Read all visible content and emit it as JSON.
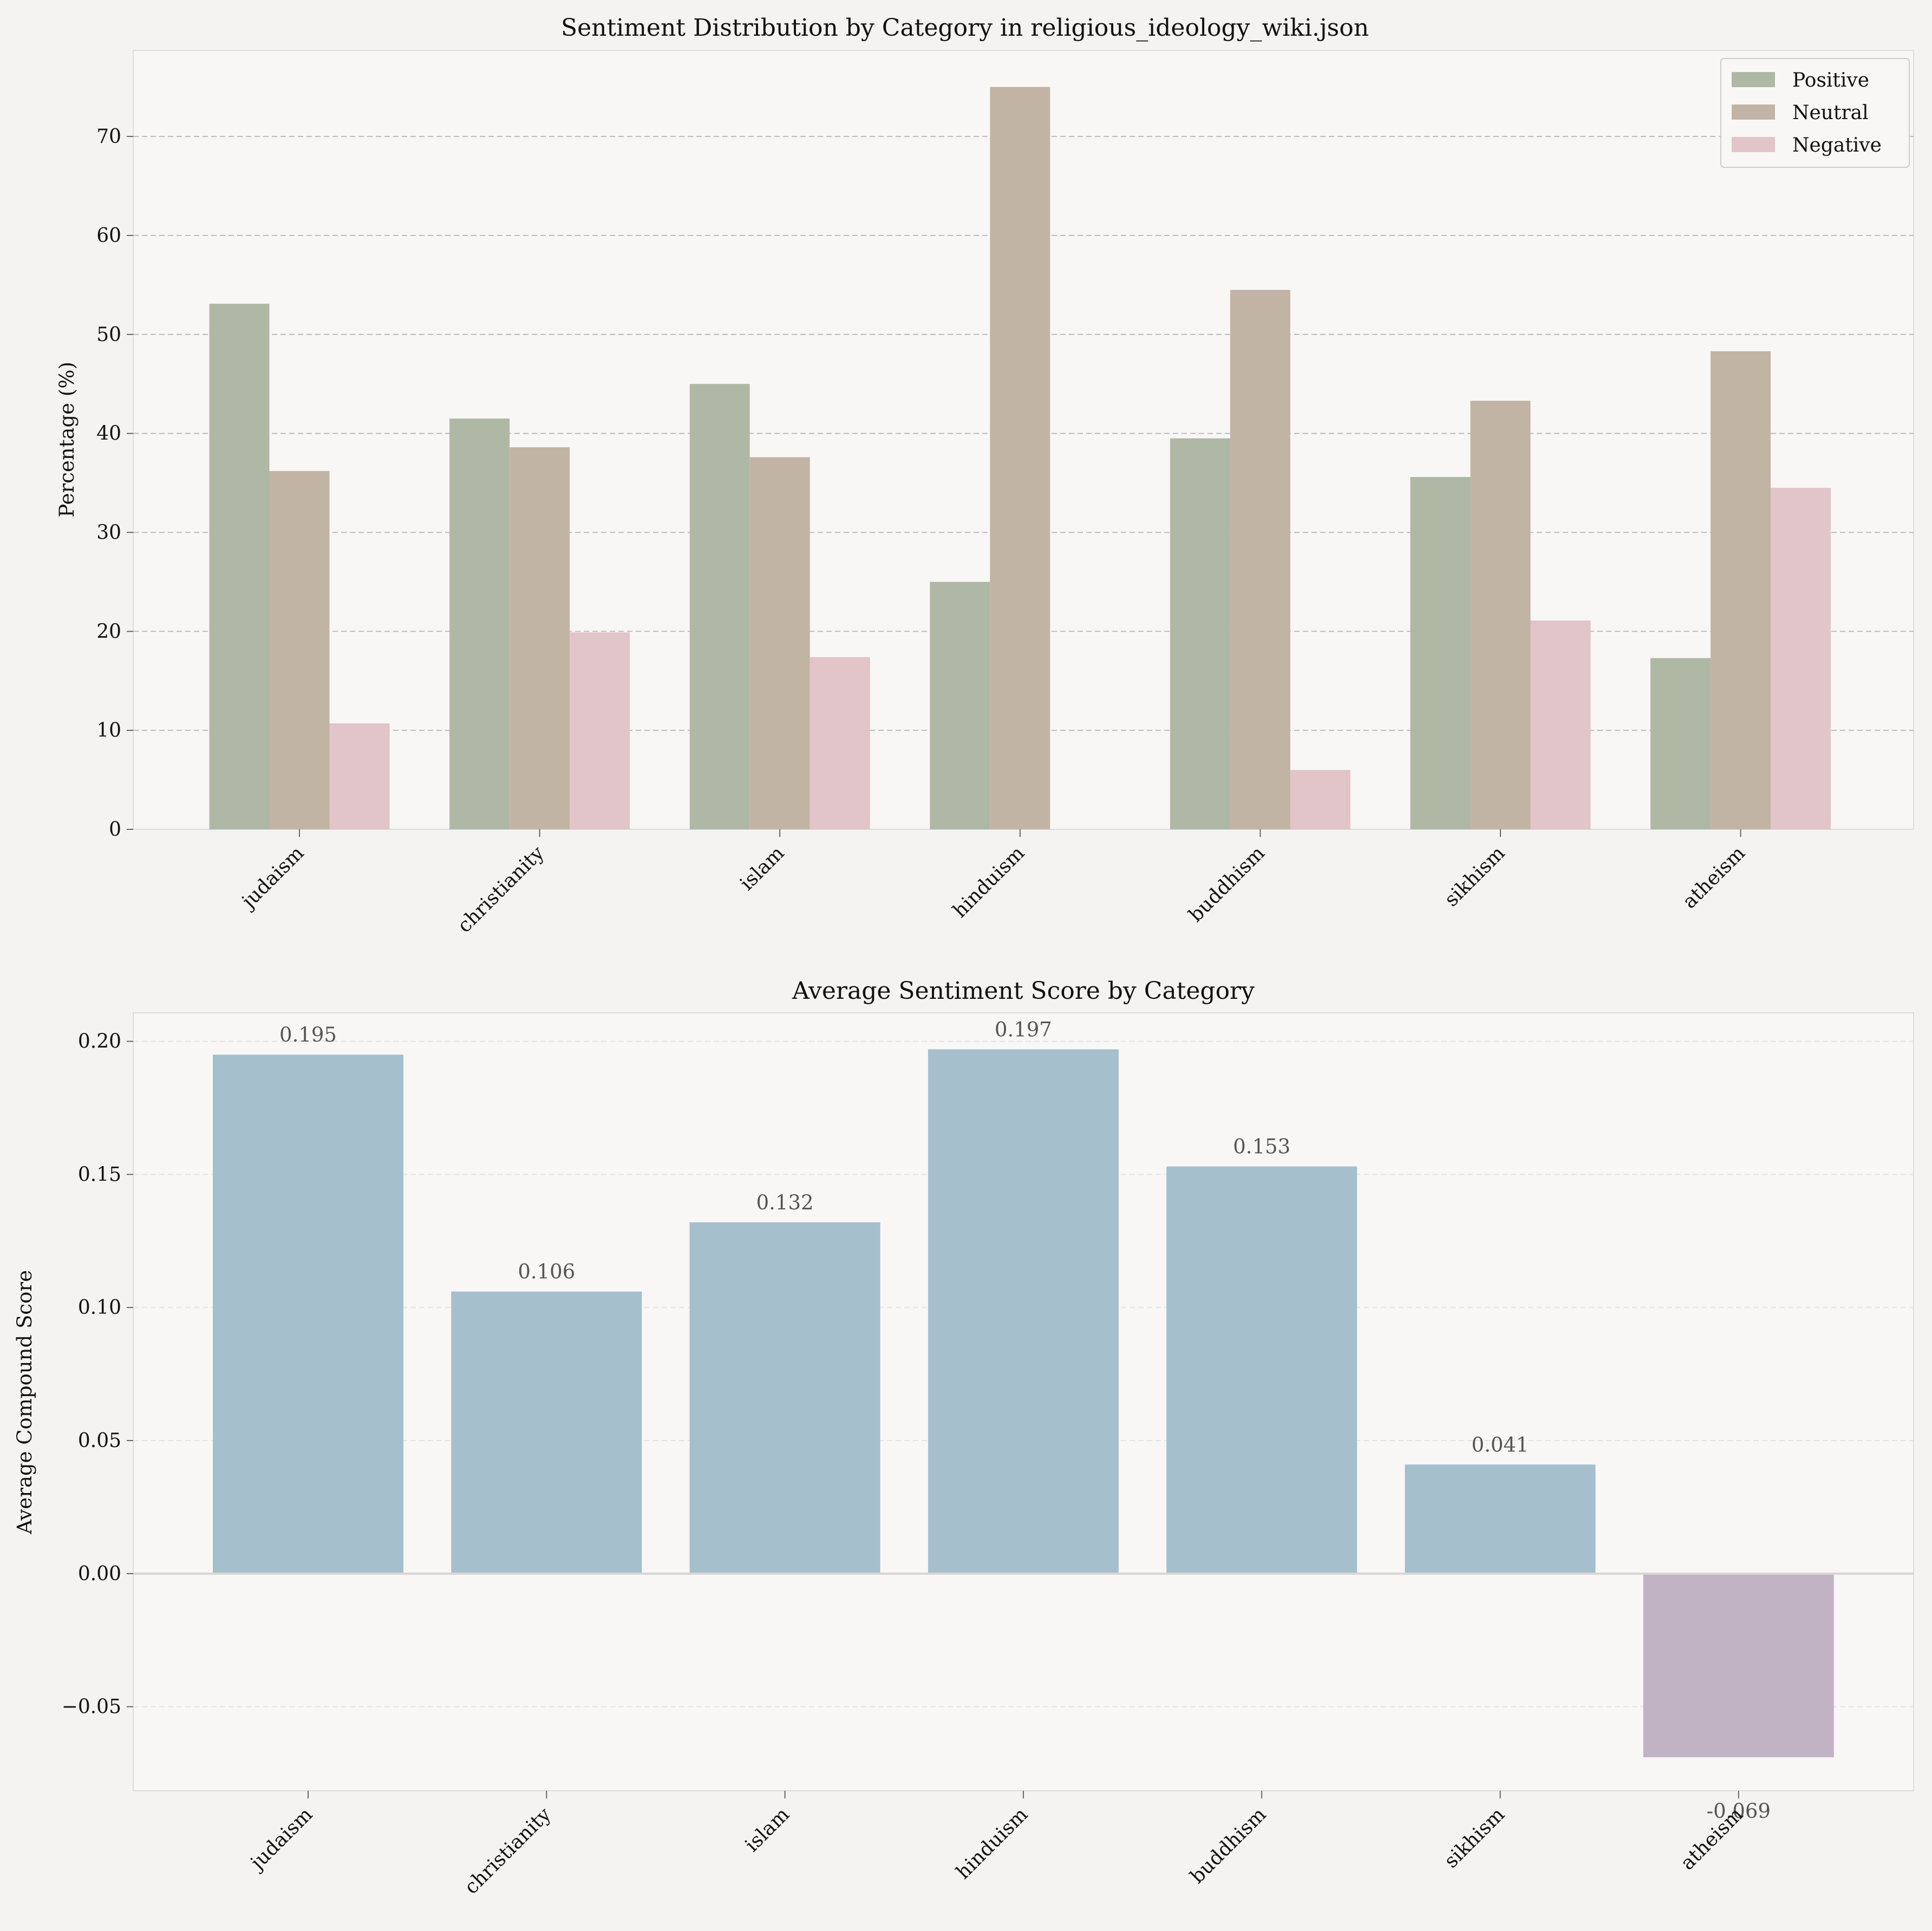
{
  "colors": {
    "positive": "#afb8a5",
    "neutral": "#c2b4a5",
    "negative": "#e1c5c8",
    "score_positive": "#a6bfcc",
    "score_negative": "#c1b3c3",
    "axes_bg": "#f8f7f6",
    "figure_bg": "#f4f3f1"
  },
  "chart_data": [
    {
      "type": "bar",
      "title": "Sentiment Distribution by Category in religious_ideology_wiki.json",
      "xlabel": "",
      "ylabel": "Percentage (%)",
      "ylim": [
        0,
        78.7
      ],
      "yticks": [
        0,
        10,
        20,
        30,
        40,
        50,
        60,
        70
      ],
      "grid": "y-dashed",
      "legend_position": "top-right",
      "categories": [
        "judaism",
        "christianity",
        "islam",
        "hinduism",
        "buddhism",
        "sikhism",
        "atheism"
      ],
      "series": [
        {
          "name": "Positive",
          "values": [
            53.1,
            41.5,
            45.0,
            25.0,
            39.5,
            35.6,
            17.3
          ]
        },
        {
          "name": "Neutral",
          "values": [
            36.2,
            38.6,
            37.6,
            75.0,
            54.5,
            43.3,
            48.3
          ]
        },
        {
          "name": "Negative",
          "values": [
            10.7,
            19.9,
            17.4,
            0.0,
            6.0,
            21.1,
            34.5
          ]
        }
      ]
    },
    {
      "type": "bar",
      "title": "Average Sentiment Score by Category",
      "xlabel": "",
      "ylabel": "Average Compound Score",
      "ylim": [
        -0.0816,
        0.2107
      ],
      "yticks": [
        -0.05,
        0.0,
        0.05,
        0.1,
        0.15,
        0.2
      ],
      "ytick_labels": [
        "−0.05",
        "0.00",
        "0.05",
        "0.10",
        "0.15",
        "0.20"
      ],
      "grid": "y-dashed",
      "categories": [
        "judaism",
        "christianity",
        "islam",
        "hinduism",
        "buddhism",
        "sikhism",
        "atheism"
      ],
      "values": [
        0.195,
        0.106,
        0.132,
        0.197,
        0.153,
        0.041,
        -0.069
      ],
      "value_labels": [
        "0.195",
        "0.106",
        "0.132",
        "0.197",
        "0.153",
        "0.041",
        "-0.069"
      ]
    }
  ]
}
